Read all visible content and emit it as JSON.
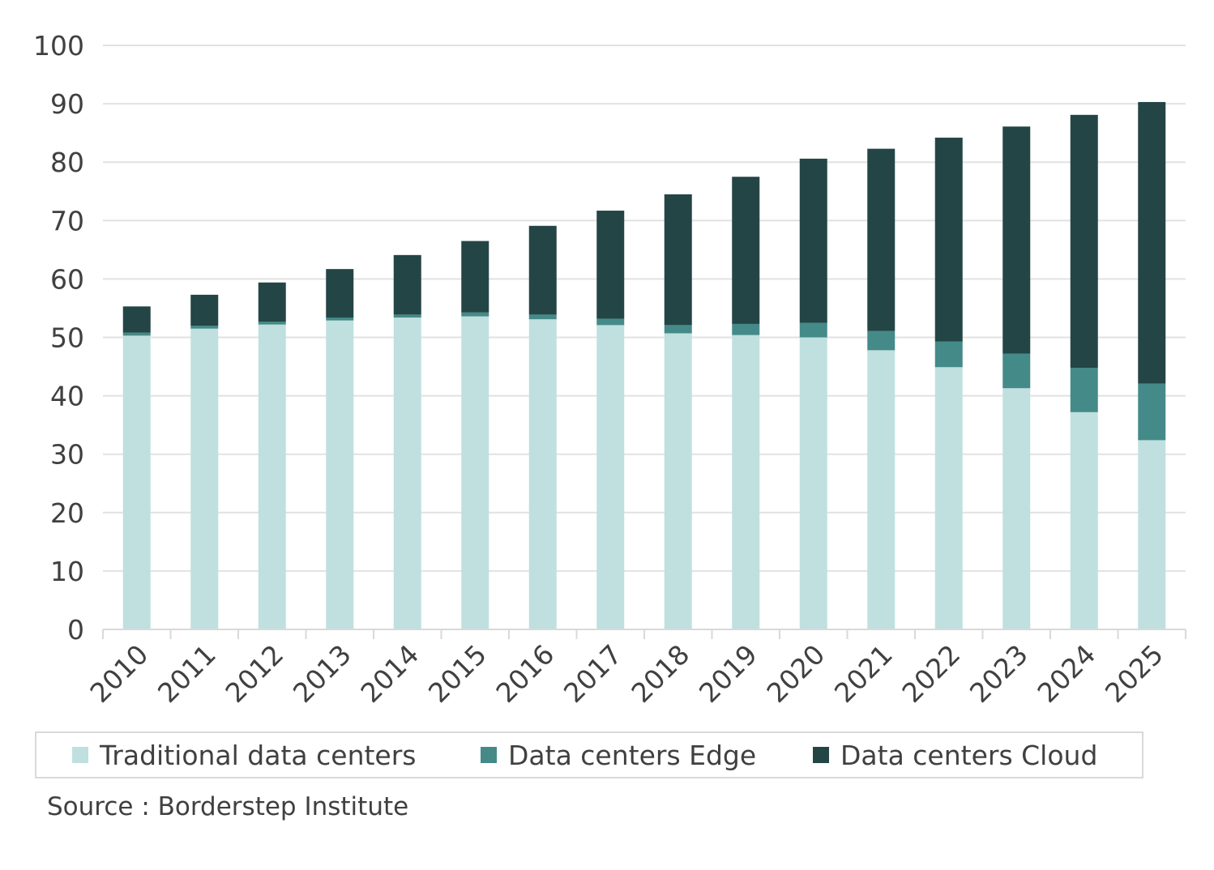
{
  "chart_data": {
    "type": "bar",
    "stacked": true,
    "categories": [
      "2010",
      "2011",
      "2012",
      "2013",
      "2014",
      "2015",
      "2016",
      "2017",
      "2018",
      "2019",
      "2020",
      "2021",
      "2022",
      "2023",
      "2024",
      "2025"
    ],
    "series": [
      {
        "name": "Traditional data centers",
        "color": "#bfe0df",
        "values": [
          50.3,
          51.5,
          52.2,
          52.9,
          53.4,
          53.6,
          53.1,
          52.1,
          50.7,
          50.4,
          50.0,
          47.8,
          44.9,
          41.3,
          37.2,
          32.4
        ]
      },
      {
        "name": "Data centers Edge",
        "color": "#448a89",
        "values": [
          0.5,
          0.5,
          0.5,
          0.5,
          0.5,
          0.7,
          0.8,
          1.1,
          1.4,
          1.9,
          2.5,
          3.3,
          4.4,
          5.9,
          7.6,
          9.7
        ]
      },
      {
        "name": "Data centers Cloud",
        "color": "#244545",
        "values": [
          4.5,
          5.3,
          6.7,
          8.3,
          10.2,
          12.2,
          15.2,
          18.5,
          22.4,
          25.2,
          28.1,
          31.2,
          34.9,
          38.9,
          43.3,
          48.2
        ]
      }
    ],
    "ylim": [
      0,
      100
    ],
    "yticks": [
      0,
      10,
      20,
      30,
      40,
      50,
      60,
      70,
      80,
      90,
      100
    ],
    "grid": true,
    "title": "",
    "xlabel": "",
    "ylabel": "",
    "legend_position": "bottom"
  },
  "source": "Source : Borderstep Institute"
}
